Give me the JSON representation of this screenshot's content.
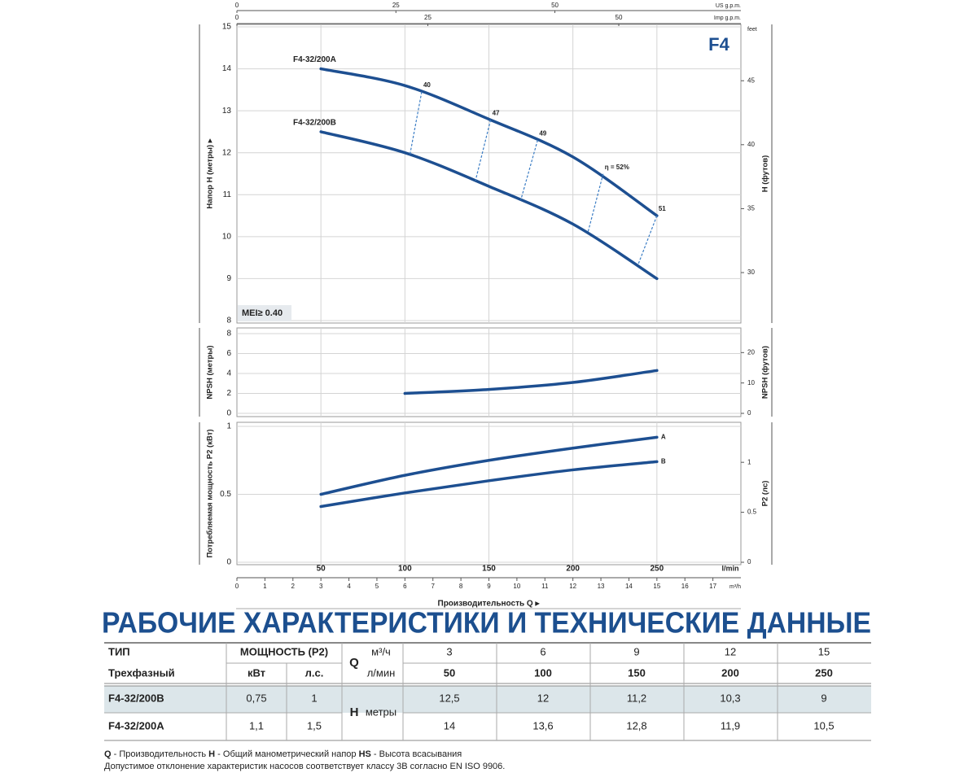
{
  "chart_data": [
    {
      "type": "line",
      "y_label": "Напор H (метры) ▸",
      "y2_label": "H (футов)",
      "y2_unit": "feet",
      "x": [
        50,
        100,
        150,
        200,
        250
      ],
      "xlim": [
        0,
        300
      ],
      "ylim": [
        8,
        15
      ],
      "yticks": [
        8,
        9,
        10,
        11,
        12,
        13,
        14,
        15
      ],
      "y2lim": [
        26.247,
        49.213
      ],
      "y2ticks": [
        30,
        35,
        40,
        45
      ],
      "grid": true,
      "top_axes": [
        {
          "label": "US g.p.m.",
          "lim": [
            0,
            79.25
          ],
          "ticks": [
            0,
            25,
            50
          ]
        },
        {
          "label": "Imp g.p.m.",
          "lim": [
            0,
            65.99
          ],
          "ticks": [
            0,
            25,
            50
          ]
        }
      ],
      "series": [
        {
          "name": "F4-32/200A",
          "color": "#1d4f91",
          "values": [
            14,
            13.6,
            12.8,
            11.9,
            10.5
          ]
        },
        {
          "name": "F4-32/200B",
          "color": "#1d4f91",
          "values": [
            12.5,
            12,
            11.2,
            10.3,
            9
          ]
        }
      ],
      "efficiency": [
        {
          "label": "40",
          "x_a": 110,
          "x_b": 103
        },
        {
          "label": "47",
          "x_a": 151,
          "x_b": 142
        },
        {
          "label": "49",
          "x_a": 179,
          "x_b": 169
        },
        {
          "label": "η = 52%",
          "x_a": 218,
          "x_b": 209
        },
        {
          "label": "51",
          "x_a": 250,
          "x_b": 239
        }
      ],
      "efficiency_color": "#3a7cc4",
      "badge": "F4",
      "mei": "MEI≥ 0.40"
    },
    {
      "type": "line",
      "y_label": "NPSH (метры)",
      "y2_label": "NPSH (футов)",
      "x": [
        100,
        150,
        200,
        250
      ],
      "xlim": [
        0,
        300
      ],
      "ylim": [
        0,
        8
      ],
      "yticks": [
        0,
        2,
        4,
        6,
        8
      ],
      "y2lim": [
        0,
        26.247
      ],
      "y2ticks": [
        0,
        10,
        20
      ],
      "grid": true,
      "color": "#1d4f91",
      "values": [
        2.0,
        2.4,
        3.1,
        4.3
      ]
    },
    {
      "type": "line",
      "y_label": "Потребляемая мощность P2 (кВт)",
      "y2_label": "P2 (лс)",
      "x": [
        50,
        100,
        150,
        200,
        250
      ],
      "xlim": [
        0,
        300
      ],
      "xticks": [
        50,
        100,
        150,
        200,
        250
      ],
      "x_unit": "l/min",
      "x2lim": [
        0,
        18
      ],
      "x2ticks": [
        0,
        1,
        2,
        3,
        4,
        5,
        6,
        7,
        8,
        9,
        10,
        11,
        12,
        13,
        14,
        15,
        16,
        17
      ],
      "x2_unit": "m³/h",
      "x_label": "Производительность Q ▸",
      "ylim": [
        0,
        1
      ],
      "yticks": [
        0,
        0.5,
        1
      ],
      "y2lim": [
        0,
        1.3596
      ],
      "y2ticks": [
        0,
        0.5,
        1
      ],
      "grid": true,
      "series": [
        {
          "name": "A",
          "color": "#1d4f91",
          "values": [
            0.5,
            0.64,
            0.75,
            0.84,
            0.92
          ]
        },
        {
          "name": "B",
          "color": "#1d4f91",
          "values": [
            0.41,
            0.51,
            0.6,
            0.68,
            0.74
          ]
        }
      ]
    }
  ],
  "title": "РАБОЧИЕ ХАРАКТЕРИСТИКИ И ТЕХНИЧЕСКИЕ ДАННЫЕ",
  "table": {
    "header": [
      [
        "ТИП",
        "МОЩНОСТЬ (P2)",
        "Q",
        "м³/ч",
        "3",
        "6",
        "9",
        "12",
        "15"
      ],
      [
        "Трехфазный",
        "кВт",
        "л.с.",
        "л/мин",
        "50",
        "100",
        "150",
        "200",
        "250"
      ]
    ],
    "h_label": "H",
    "h_unit": "метры",
    "rows": [
      [
        "F4-32/200B",
        "0,75",
        "1",
        "12,5",
        "12",
        "11,2",
        "10,3",
        "9"
      ],
      [
        "F4-32/200A",
        "1,1",
        "1,5",
        "14",
        "13,6",
        "12,8",
        "11,9",
        "10,5"
      ]
    ]
  },
  "footer": {
    "legend": [
      {
        "key": "Q",
        "text": " - Производительность  "
      },
      {
        "key": "H",
        "text": " - Общий манометрический напор  "
      },
      {
        "key": "HS",
        "text": " - Высота всасывания"
      }
    ],
    "note": "Допустимое отклонение характеристик насосов соответствует классу 3В согласно EN ISO 9906."
  }
}
